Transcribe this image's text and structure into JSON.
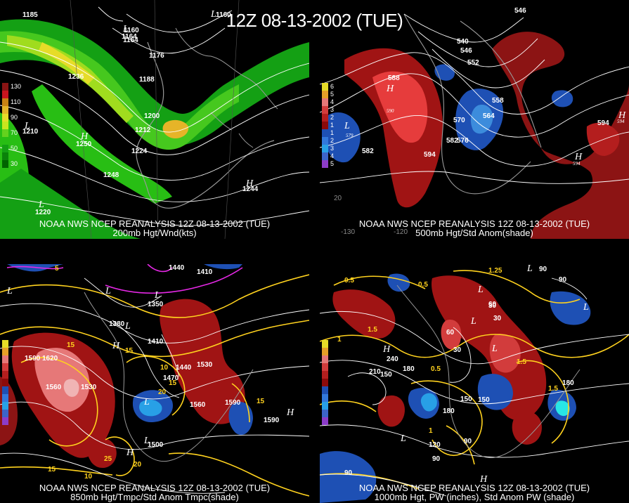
{
  "title": "12Z 08-13-2002 (TUE)",
  "panels": [
    {
      "caption_line1": "NOAA NWS NCEP REANALYSIS 12Z 08-13-2002 (TUE)",
      "caption_line2": "200mb Hgt/Wnd(kts)",
      "colorbar": [
        {
          "label": "130",
          "color": "#8a1414"
        },
        {
          "label": "",
          "color": "#c8141e"
        },
        {
          "label": "110",
          "color": "#c88214"
        },
        {
          "label": "",
          "color": "#e6b428"
        },
        {
          "label": "90",
          "color": "#e6dc28"
        },
        {
          "label": "",
          "color": "#c8e61e"
        },
        {
          "label": "70",
          "color": "#64d21e"
        },
        {
          "label": "",
          "color": "#28be14"
        },
        {
          "label": "50",
          "color": "#14a014"
        },
        {
          "label": "",
          "color": "#0a820a"
        },
        {
          "label": "30",
          "color": "#006400"
        }
      ],
      "contour_labels": [
        "1164",
        "1160",
        "1164",
        "1176",
        "1236",
        "1188",
        "1200",
        "1212",
        "1224",
        "1248",
        "1250",
        "1210",
        "1244",
        "1220",
        "1185",
        "1160"
      ],
      "hl_letters": [
        "L",
        "L",
        "H",
        "L",
        "H",
        "L"
      ]
    },
    {
      "caption_line1": "NOAA NWS NCEP REANALYSIS 12Z 08-13-2002 (TUE)",
      "caption_line2": "500mb Hgt/Std Anom(shade)",
      "colorbar": [
        {
          "label": "6",
          "color": "#e6dc28"
        },
        {
          "label": "5",
          "color": "#e6a028"
        },
        {
          "label": "4",
          "color": "#e67878"
        },
        {
          "label": "3",
          "color": "#d23c3c"
        },
        {
          "label": "2",
          "color": "#b41e1e"
        },
        {
          "label": "1",
          "color": "#8c0a0a"
        },
        {
          "label": "1",
          "color": "#1e50b4"
        },
        {
          "label": "2",
          "color": "#3278dc"
        },
        {
          "label": "3",
          "color": "#28a0e6"
        },
        {
          "label": "4",
          "color": "#3c64c8"
        },
        {
          "label": "5",
          "color": "#8c3cc8"
        }
      ],
      "contour_labels": [
        "546",
        "540",
        "546",
        "552",
        "588",
        "558",
        "570",
        "564",
        "582",
        "576",
        "594",
        "582",
        "594"
      ],
      "hl_letters": [
        "H",
        "L",
        "H",
        "H"
      ],
      "hl_values": [
        "590",
        "579",
        "594",
        "594"
      ],
      "grid_labels": [
        "20",
        "-130",
        "-120"
      ]
    },
    {
      "caption_line1": "NOAA NWS NCEP REANALYSIS 12Z 08-13-2002 (TUE)",
      "caption_line2": "850mb Hgt/Tmpc/Std Anom Tmpc(shade)",
      "contour_labels": [
        "1440",
        "1410",
        "1350",
        "1380",
        "1590",
        "1620",
        "1560",
        "1530",
        "1410",
        "1470",
        "1440",
        "1500",
        "1560",
        "1530",
        "1590",
        "1590"
      ],
      "temp_labels": [
        "5",
        "15",
        "15",
        "10",
        "15",
        "25",
        "20",
        "15",
        "15",
        "20",
        "10"
      ],
      "hl_letters": [
        "L",
        "L",
        "L",
        "L",
        "H",
        "H",
        "L",
        "L",
        "H"
      ]
    },
    {
      "caption_line1": "NOAA NWS NCEP REANALYSIS 12Z 08-13-2002 (TUE)",
      "caption_line2": "1000mb Hgt, PW (inches), Std Anom PW (shade)",
      "contour_labels": [
        "90",
        "90",
        "60",
        "30",
        "60",
        "30",
        "240",
        "210",
        "180",
        "150",
        "180",
        "90",
        "120",
        "150",
        "150",
        "90",
        "90",
        "180",
        "30"
      ],
      "pw_labels": [
        "0.5",
        "0.5",
        "1.25",
        "1.5",
        "1",
        "0.5",
        "1.5",
        "1.5",
        "1"
      ],
      "hl_letters": [
        "L",
        "L",
        "H",
        "L",
        "L",
        "L",
        "H",
        "L"
      ]
    }
  ]
}
